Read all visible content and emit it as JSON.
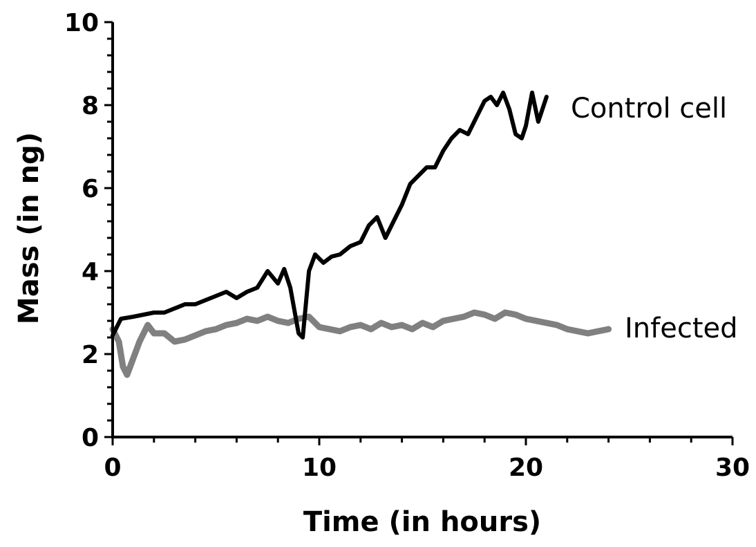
{
  "chart_data": {
    "type": "line",
    "title": "",
    "xlabel": "Time (in hours)",
    "ylabel": "Mass (in ng)",
    "xlim": [
      0,
      30
    ],
    "ylim": [
      0,
      10
    ],
    "xticks": [
      0,
      10,
      20,
      30
    ],
    "xtick_labels": [
      "0",
      "10",
      "20",
      "30"
    ],
    "xminor_step": 2,
    "yticks": [
      0,
      2,
      4,
      6,
      8,
      10
    ],
    "ytick_labels": [
      "0",
      "2",
      "4",
      "6",
      "8",
      "10"
    ],
    "yminor_step": 0.4,
    "grid": false,
    "legend": "inline-right",
    "series": [
      {
        "name": "Control cell",
        "color": "#000000",
        "x": [
          0,
          0.4,
          1,
          1.5,
          2,
          2.5,
          3,
          3.5,
          4,
          4.5,
          5,
          5.5,
          6,
          6.5,
          7,
          7.5,
          8,
          8.3,
          8.6,
          9,
          9.2,
          9.5,
          9.8,
          10.2,
          10.6,
          11,
          11.5,
          12,
          12.4,
          12.8,
          13.2,
          13.6,
          14,
          14.4,
          14.8,
          15.2,
          15.6,
          16,
          16.4,
          16.8,
          17.2,
          17.6,
          18,
          18.3,
          18.6,
          18.9,
          19.2,
          19.5,
          19.8,
          20,
          20.3,
          20.6,
          21
        ],
        "y": [
          2.45,
          2.85,
          2.9,
          2.95,
          3.0,
          3.0,
          3.1,
          3.2,
          3.2,
          3.3,
          3.4,
          3.5,
          3.35,
          3.5,
          3.6,
          4.0,
          3.7,
          4.05,
          3.6,
          2.5,
          2.4,
          4.0,
          4.4,
          4.2,
          4.35,
          4.4,
          4.6,
          4.7,
          5.1,
          5.3,
          4.8,
          5.2,
          5.6,
          6.1,
          6.3,
          6.5,
          6.5,
          6.9,
          7.2,
          7.4,
          7.3,
          7.7,
          8.1,
          8.2,
          8.0,
          8.3,
          7.9,
          7.3,
          7.2,
          7.5,
          8.3,
          7.6,
          8.2
        ]
      },
      {
        "name": "Infected",
        "color": "#808080",
        "x": [
          0,
          0.3,
          0.5,
          0.7,
          1.0,
          1.3,
          1.7,
          2.0,
          2.5,
          3.0,
          3.5,
          4.0,
          4.5,
          5.0,
          5.5,
          6.0,
          6.5,
          7.0,
          7.5,
          8.0,
          8.5,
          9.0,
          9.5,
          10.0,
          10.5,
          11.0,
          11.5,
          12.0,
          12.5,
          13.0,
          13.5,
          14.0,
          14.5,
          15.0,
          15.5,
          16.0,
          16.5,
          17.0,
          17.5,
          18.0,
          18.5,
          19.0,
          19.5,
          20.0,
          20.5,
          21.0,
          21.5,
          22.0,
          22.5,
          23.0,
          23.5,
          24.0
        ],
        "y": [
          2.6,
          2.3,
          1.7,
          1.5,
          1.9,
          2.3,
          2.7,
          2.5,
          2.5,
          2.3,
          2.35,
          2.45,
          2.55,
          2.6,
          2.7,
          2.75,
          2.85,
          2.8,
          2.9,
          2.8,
          2.75,
          2.85,
          2.9,
          2.65,
          2.6,
          2.55,
          2.65,
          2.7,
          2.6,
          2.75,
          2.65,
          2.7,
          2.6,
          2.75,
          2.65,
          2.8,
          2.85,
          2.9,
          3.0,
          2.95,
          2.85,
          3.0,
          2.95,
          2.85,
          2.8,
          2.75,
          2.7,
          2.6,
          2.55,
          2.5,
          2.55,
          2.6
        ]
      }
    ]
  }
}
